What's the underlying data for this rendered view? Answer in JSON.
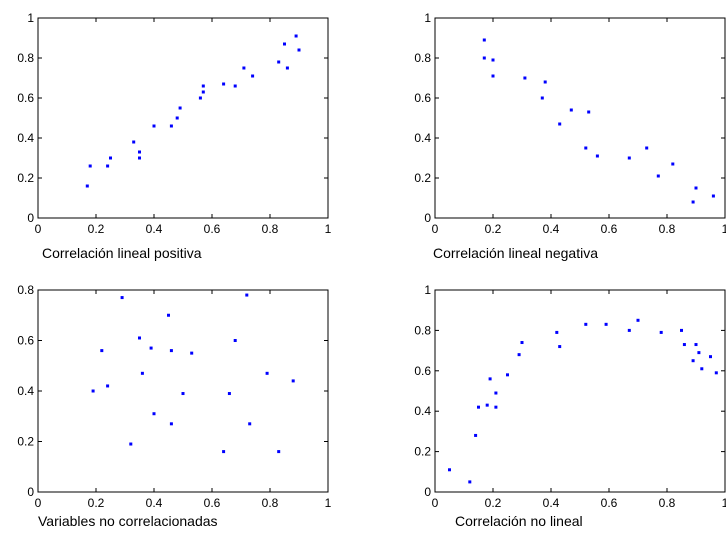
{
  "chart_data": [
    {
      "type": "scatter",
      "caption": "Correlación lineal positiva",
      "xlim": [
        0,
        1
      ],
      "ylim": [
        0,
        1
      ],
      "xticks": [
        0,
        0.2,
        0.4,
        0.6,
        0.8,
        1
      ],
      "xtick_labels": [
        "0",
        "0.2",
        "0.4",
        "0.6",
        "0.8",
        "1"
      ],
      "yticks": [
        0,
        0.2,
        0.4,
        0.6,
        0.8,
        1
      ],
      "ytick_labels": [
        "0",
        "0.2",
        "0.4",
        "0.6",
        "0.8",
        "1"
      ],
      "color": "#0000ff",
      "points": [
        [
          0.17,
          0.16
        ],
        [
          0.18,
          0.26
        ],
        [
          0.24,
          0.26
        ],
        [
          0.25,
          0.3
        ],
        [
          0.33,
          0.38
        ],
        [
          0.35,
          0.3
        ],
        [
          0.35,
          0.33
        ],
        [
          0.4,
          0.46
        ],
        [
          0.46,
          0.46
        ],
        [
          0.48,
          0.5
        ],
        [
          0.49,
          0.55
        ],
        [
          0.56,
          0.6
        ],
        [
          0.57,
          0.63
        ],
        [
          0.57,
          0.66
        ],
        [
          0.64,
          0.67
        ],
        [
          0.68,
          0.66
        ],
        [
          0.71,
          0.75
        ],
        [
          0.74,
          0.71
        ],
        [
          0.83,
          0.78
        ],
        [
          0.85,
          0.87
        ],
        [
          0.86,
          0.75
        ],
        [
          0.89,
          0.91
        ],
        [
          0.9,
          0.84
        ]
      ]
    },
    {
      "type": "scatter",
      "caption": "Correlación lineal negativa",
      "xlim": [
        0,
        1
      ],
      "ylim": [
        0,
        1
      ],
      "xticks": [
        0,
        0.2,
        0.4,
        0.6,
        0.8,
        1
      ],
      "xtick_labels": [
        "0",
        "0.2",
        "0.4",
        "0.6",
        "0.8",
        "1"
      ],
      "yticks": [
        0,
        0.2,
        0.4,
        0.6,
        0.8,
        1
      ],
      "ytick_labels": [
        "0",
        "0.2",
        "0.4",
        "0.6",
        "0.8",
        "1"
      ],
      "color": "#0000ff",
      "points": [
        [
          0.17,
          0.89
        ],
        [
          0.17,
          0.8
        ],
        [
          0.2,
          0.79
        ],
        [
          0.2,
          0.71
        ],
        [
          0.31,
          0.7
        ],
        [
          0.37,
          0.6
        ],
        [
          0.38,
          0.68
        ],
        [
          0.43,
          0.47
        ],
        [
          0.47,
          0.54
        ],
        [
          0.52,
          0.35
        ],
        [
          0.53,
          0.53
        ],
        [
          0.56,
          0.31
        ],
        [
          0.67,
          0.3
        ],
        [
          0.73,
          0.35
        ],
        [
          0.77,
          0.21
        ],
        [
          0.82,
          0.27
        ],
        [
          0.89,
          0.08
        ],
        [
          0.9,
          0.15
        ],
        [
          0.96,
          0.11
        ]
      ]
    },
    {
      "type": "scatter",
      "caption": "Variables no correlacionadas",
      "xlim": [
        0,
        1
      ],
      "ylim": [
        0,
        0.8
      ],
      "xticks": [
        0,
        0.2,
        0.4,
        0.6,
        0.8,
        1
      ],
      "xtick_labels": [
        "0",
        "0.2",
        "0.4",
        "0.6",
        "0.8",
        "1"
      ],
      "yticks": [
        0,
        0.2,
        0.4,
        0.6,
        0.8
      ],
      "ytick_labels": [
        "0",
        "0.2",
        "0.4",
        "0.6",
        "0.8"
      ],
      "color": "#0000ff",
      "points": [
        [
          0.19,
          0.4
        ],
        [
          0.22,
          0.56
        ],
        [
          0.24,
          0.42
        ],
        [
          0.29,
          0.77
        ],
        [
          0.32,
          0.19
        ],
        [
          0.35,
          0.61
        ],
        [
          0.36,
          0.47
        ],
        [
          0.39,
          0.57
        ],
        [
          0.4,
          0.31
        ],
        [
          0.45,
          0.7
        ],
        [
          0.46,
          0.56
        ],
        [
          0.46,
          0.27
        ],
        [
          0.5,
          0.39
        ],
        [
          0.53,
          0.55
        ],
        [
          0.64,
          0.16
        ],
        [
          0.66,
          0.39
        ],
        [
          0.68,
          0.6
        ],
        [
          0.72,
          0.78
        ],
        [
          0.73,
          0.27
        ],
        [
          0.79,
          0.47
        ],
        [
          0.83,
          0.16
        ],
        [
          0.88,
          0.44
        ]
      ]
    },
    {
      "type": "scatter",
      "caption": "Correlación no lineal",
      "xlim": [
        0,
        1
      ],
      "ylim": [
        0,
        1
      ],
      "xticks": [
        0,
        0.2,
        0.4,
        0.6,
        0.8,
        1
      ],
      "xtick_labels": [
        "0",
        "0.2",
        "0.4",
        "0.6",
        "0.8",
        "1"
      ],
      "yticks": [
        0,
        0.2,
        0.4,
        0.6,
        0.8,
        1
      ],
      "ytick_labels": [
        "0",
        "0.2",
        "0.4",
        "0.6",
        "0.8",
        "1"
      ],
      "color": "#0000ff",
      "points": [
        [
          0.05,
          0.11
        ],
        [
          0.12,
          0.05
        ],
        [
          0.14,
          0.28
        ],
        [
          0.15,
          0.42
        ],
        [
          0.18,
          0.43
        ],
        [
          0.19,
          0.56
        ],
        [
          0.21,
          0.49
        ],
        [
          0.21,
          0.42
        ],
        [
          0.25,
          0.58
        ],
        [
          0.29,
          0.68
        ],
        [
          0.3,
          0.74
        ],
        [
          0.42,
          0.79
        ],
        [
          0.43,
          0.72
        ],
        [
          0.52,
          0.83
        ],
        [
          0.59,
          0.83
        ],
        [
          0.67,
          0.8
        ],
        [
          0.7,
          0.85
        ],
        [
          0.78,
          0.79
        ],
        [
          0.85,
          0.8
        ],
        [
          0.86,
          0.73
        ],
        [
          0.89,
          0.65
        ],
        [
          0.9,
          0.73
        ],
        [
          0.91,
          0.69
        ],
        [
          0.92,
          0.61
        ],
        [
          0.95,
          0.67
        ],
        [
          0.97,
          0.59
        ]
      ]
    }
  ]
}
